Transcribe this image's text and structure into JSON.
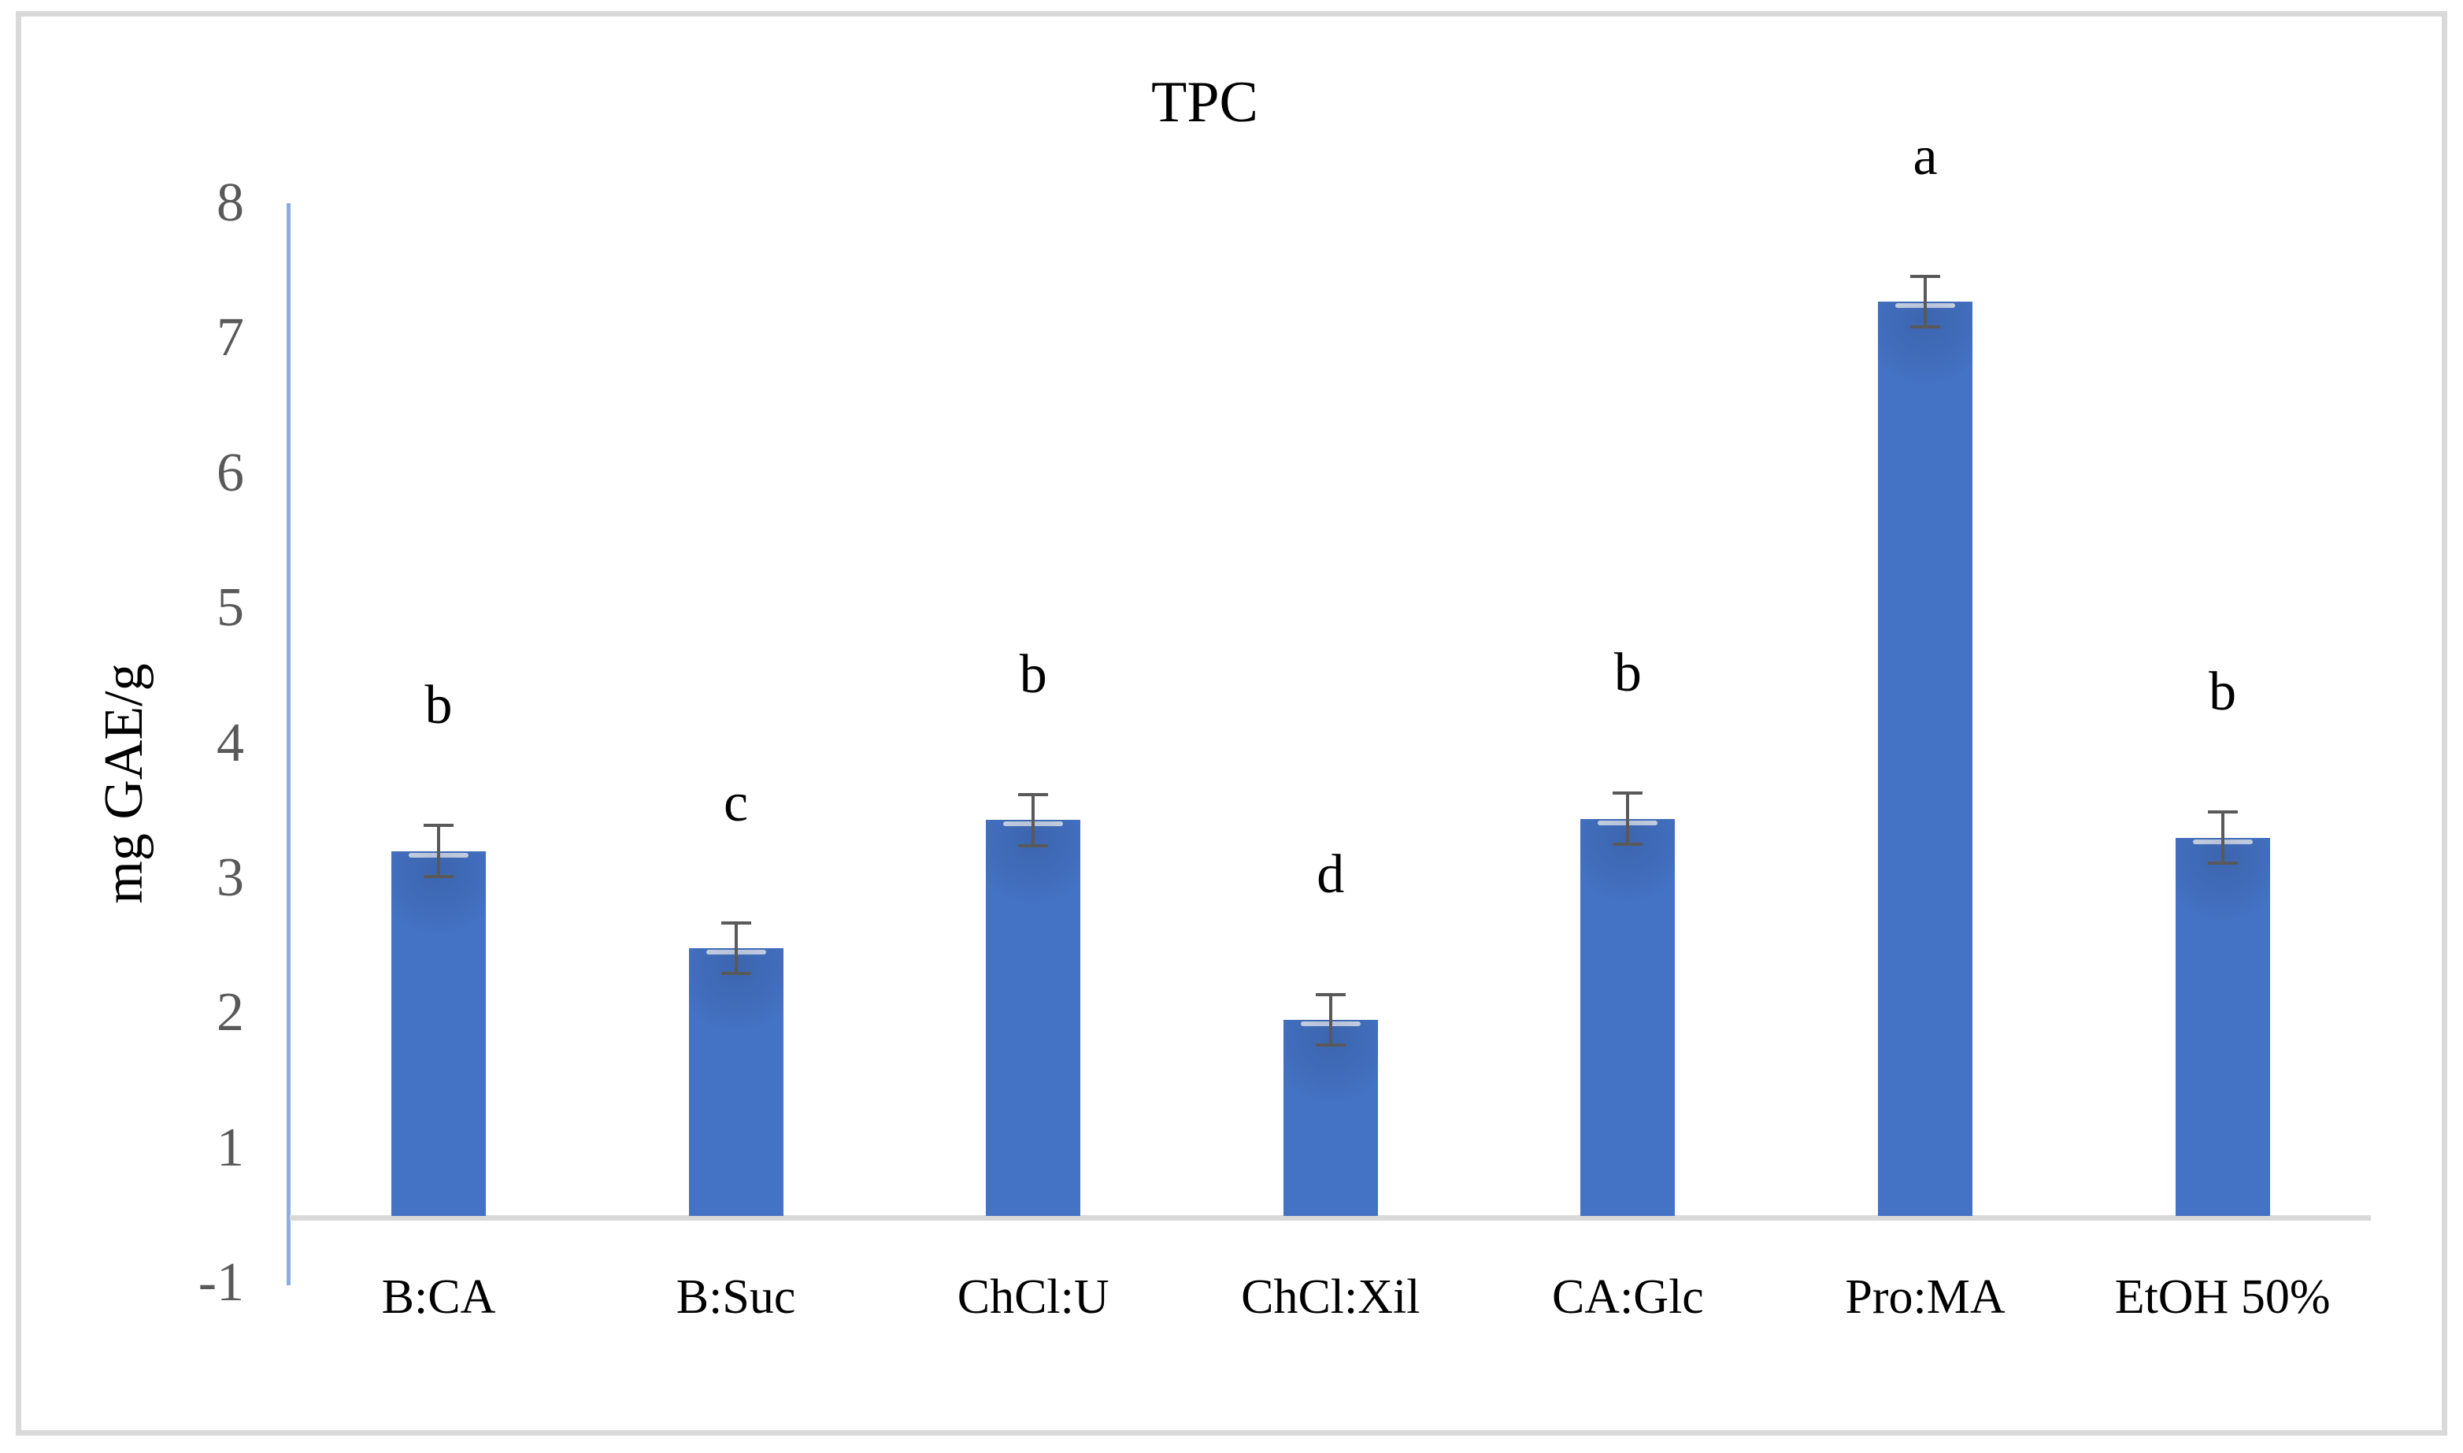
{
  "figure": {
    "border_color": "#d9d9d9",
    "background_color": "#ffffff"
  },
  "chart_data": {
    "type": "bar",
    "title": "TPC",
    "xlabel": "",
    "ylabel": "mg GAE/g",
    "categories": [
      "B:CA",
      "B:Suc",
      "ChCl:U",
      "ChCl:Xil",
      "CA:Glc",
      "Pro:MA",
      "EtOH 50%"
    ],
    "series": [
      {
        "name": "TPC",
        "values": [
          3.2,
          2.48,
          3.43,
          1.95,
          3.44,
          7.27,
          3.3
        ],
        "errors": [
          0.2,
          0.2,
          0.2,
          0.2,
          0.2,
          0.2,
          0.2
        ],
        "significance_letters": [
          "b",
          "c",
          "b",
          "d",
          "b",
          "a",
          "b"
        ]
      }
    ],
    "y_tick_labels": [
      "8",
      "7",
      "6",
      "5",
      "4",
      "3",
      "2",
      "1",
      "-1"
    ],
    "ylim": [
      -1,
      8
    ],
    "grid": false,
    "legend": "none",
    "colors": {
      "bar_fill": "#4472c4",
      "bar_top_highlight": "#d9e1f2",
      "y_axis_line": "#8faadc",
      "x_baseline": "#d9d9d9",
      "tick_label": "#595959",
      "error_bar": "#595959",
      "text": "#000000"
    }
  }
}
